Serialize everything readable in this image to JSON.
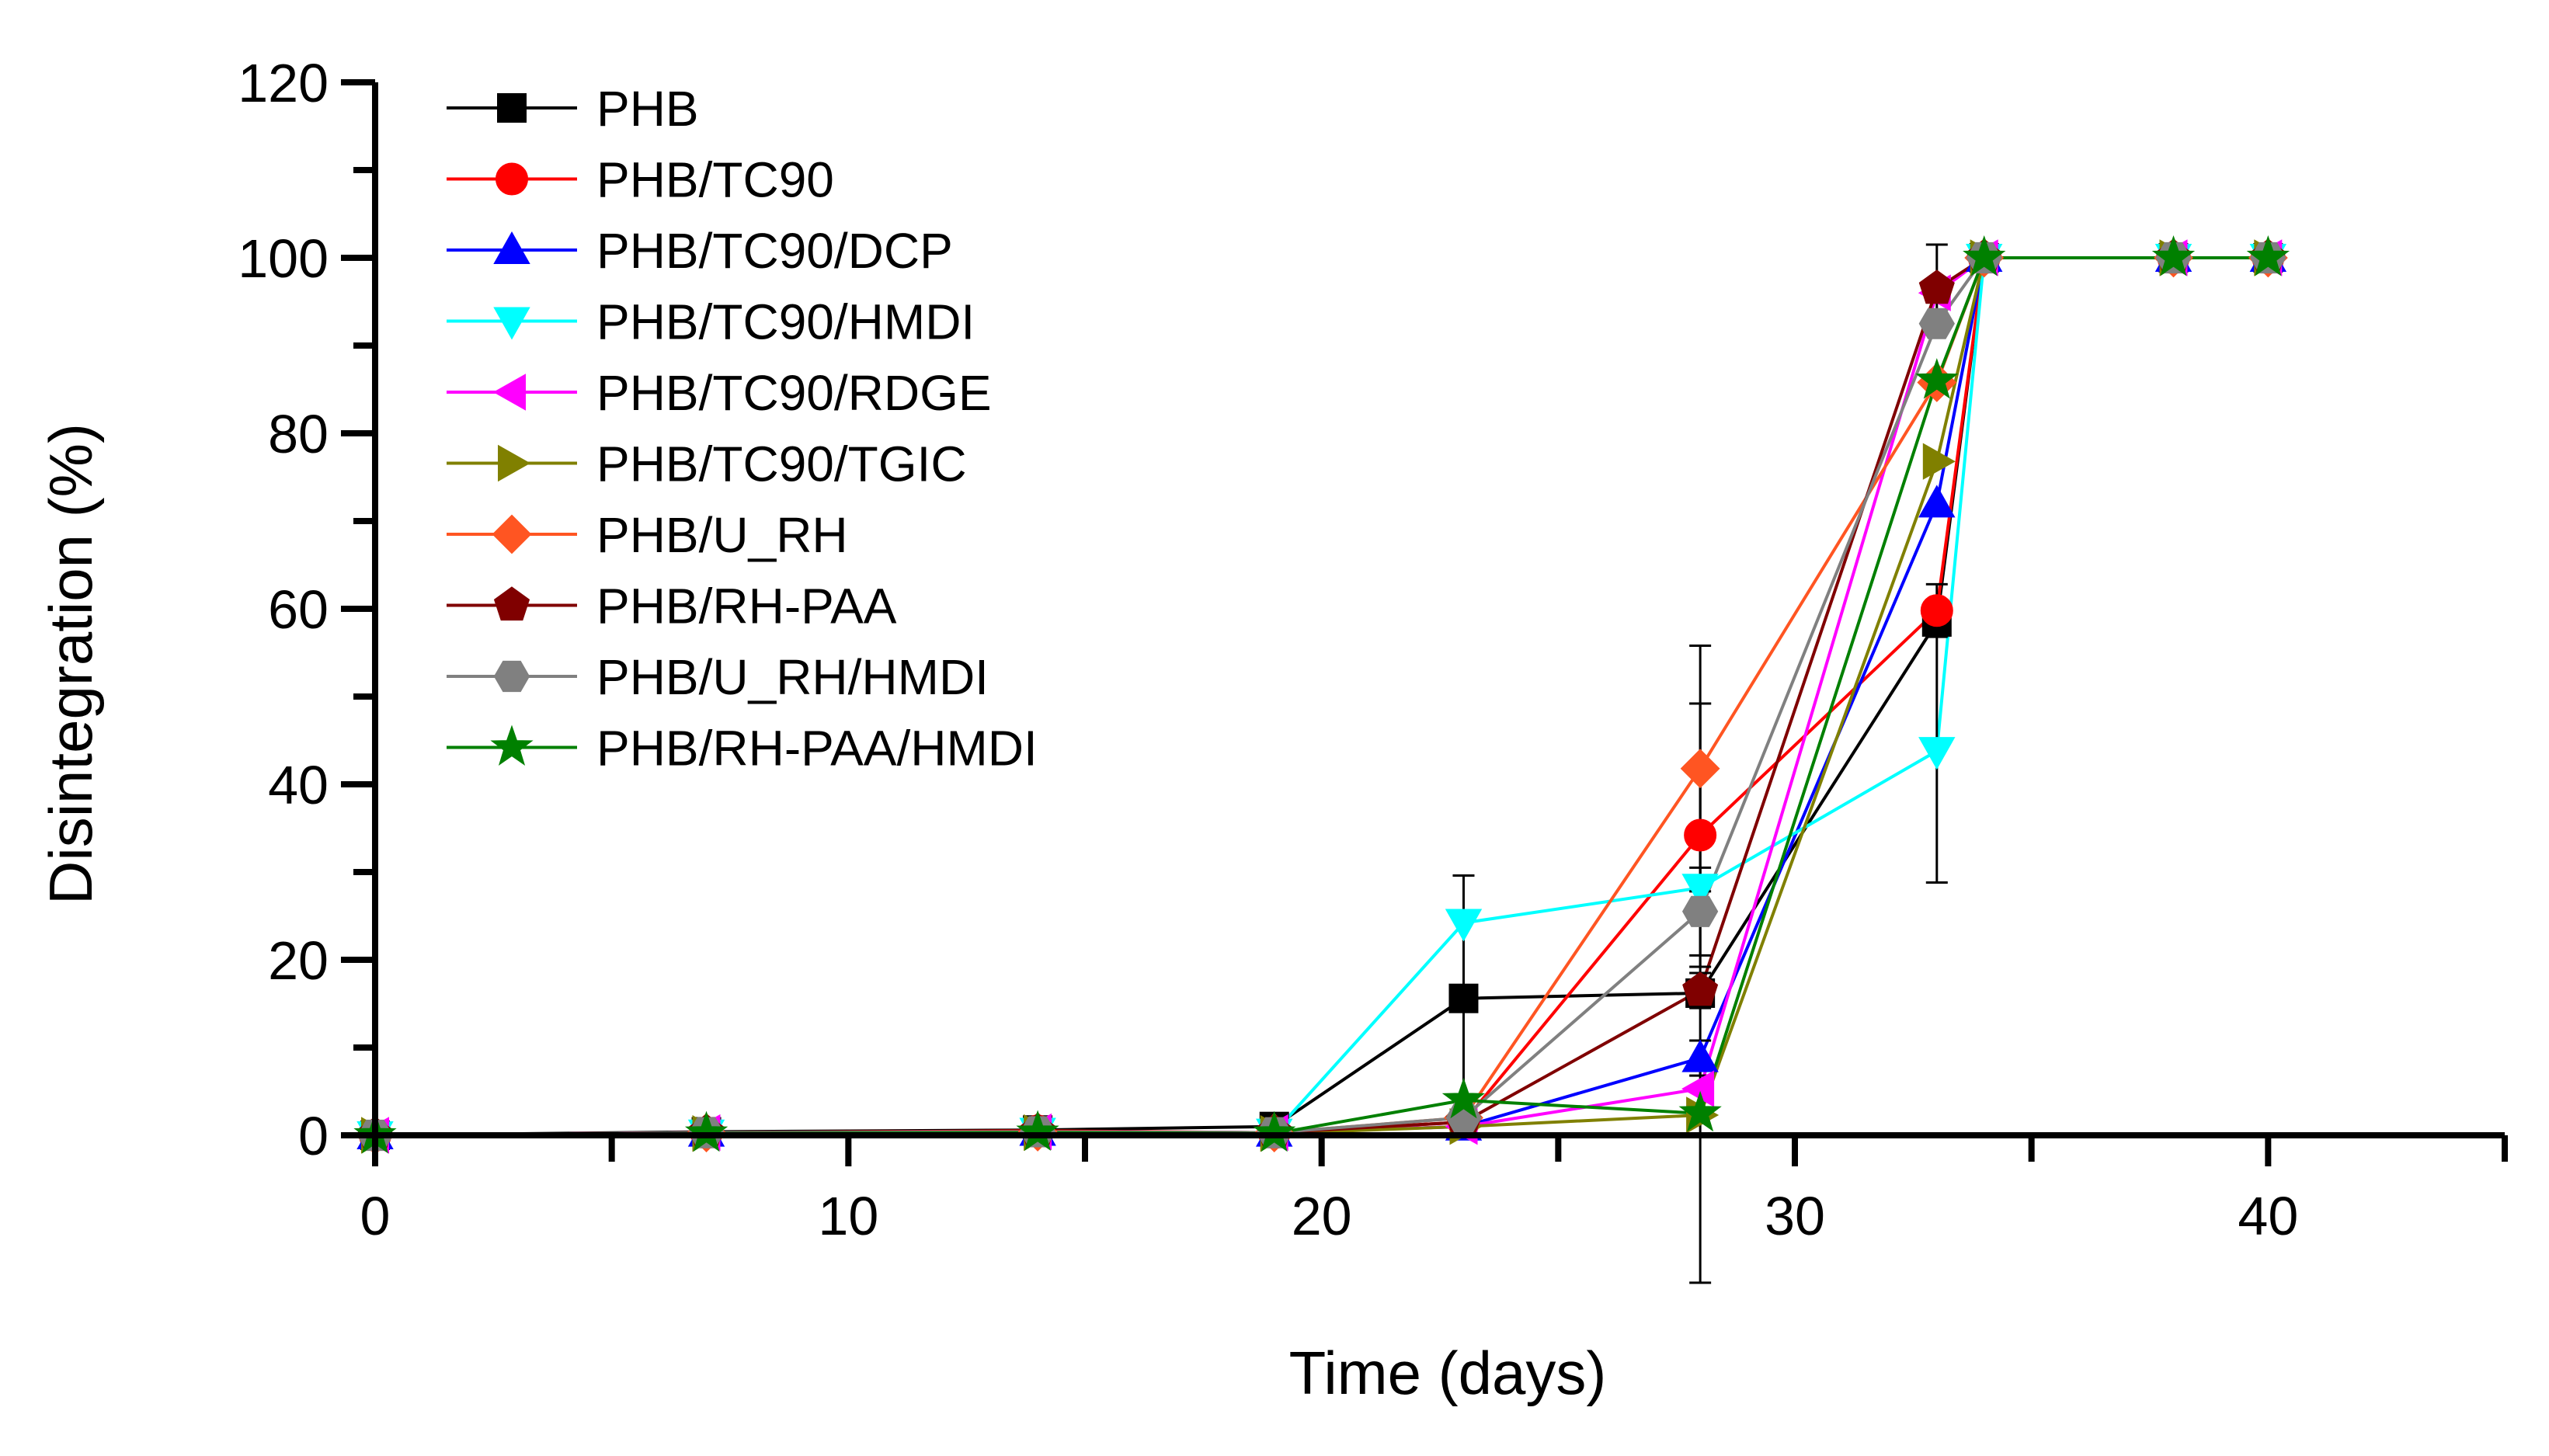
{
  "chart_data": {
    "type": "line",
    "title": "",
    "xlabel": "Time (days)",
    "ylabel": "Disintegration (%)",
    "xlim": [
      0,
      45
    ],
    "ylim": [
      0,
      120
    ],
    "xticks": [
      0,
      10,
      20,
      30,
      40
    ],
    "yticks": [
      0,
      20,
      40,
      60,
      80,
      100,
      120
    ],
    "grid": false,
    "legend_position": "top-left",
    "series": [
      {
        "name": "PHB",
        "color": "#000000",
        "marker": "square",
        "x": [
          0,
          7,
          14,
          19,
          23,
          28,
          33,
          34,
          38,
          40
        ],
        "y": [
          0,
          0.4,
          0.6,
          1,
          15.6,
          16.2,
          58.5,
          100,
          100,
          100
        ],
        "err": [
          0,
          0,
          0,
          0,
          14,
          33,
          0,
          0,
          0,
          0
        ]
      },
      {
        "name": "PHB/TC90",
        "color": "#ff0000",
        "marker": "circle",
        "x": [
          0,
          7,
          14,
          19,
          23,
          28,
          33,
          34,
          38,
          40
        ],
        "y": [
          0,
          0.3,
          0.5,
          0.3,
          1.5,
          34.2,
          59.8,
          100,
          100,
          100
        ],
        "err": [
          0,
          0,
          0,
          0,
          0,
          15,
          3,
          0,
          0,
          0
        ]
      },
      {
        "name": "PHB/TC90/DCP",
        "color": "#0000ff",
        "marker": "triangle-up",
        "x": [
          0,
          7,
          14,
          19,
          23,
          28,
          33,
          34,
          38,
          40
        ],
        "y": [
          0,
          0.3,
          0.4,
          0.3,
          1,
          8.8,
          72,
          100,
          100,
          100
        ],
        "err": [
          0,
          0,
          0,
          0,
          0,
          2,
          0,
          0,
          0,
          0
        ]
      },
      {
        "name": "PHB/TC90/HMDI",
        "color": "#00ffff",
        "marker": "triangle-down",
        "x": [
          0,
          7,
          14,
          19,
          23,
          28,
          33,
          34,
          38,
          40
        ],
        "y": [
          0,
          0.2,
          0.4,
          0.3,
          24.2,
          28.2,
          43.8,
          100,
          100,
          100
        ],
        "err": [
          0,
          0,
          0,
          0,
          0,
          0,
          15,
          0,
          0,
          0
        ]
      },
      {
        "name": "PHB/TC90/RDGE",
        "color": "#ff00ff",
        "marker": "triangle-left",
        "x": [
          0,
          7,
          14,
          19,
          23,
          28,
          33,
          34,
          38,
          40
        ],
        "y": [
          0,
          0.3,
          0.4,
          0.3,
          1,
          5.3,
          96,
          100,
          100,
          100
        ],
        "err": [
          0,
          0,
          0,
          0,
          0,
          0,
          0,
          0,
          0,
          0
        ]
      },
      {
        "name": "PHB/TC90/TGIC",
        "color": "#808000",
        "marker": "triangle-right",
        "x": [
          0,
          7,
          14,
          19,
          23,
          28,
          33,
          34,
          38,
          40
        ],
        "y": [
          0,
          0.2,
          0.3,
          0.2,
          1,
          2.3,
          76.8,
          100,
          100,
          100
        ],
        "err": [
          0,
          0,
          0,
          0,
          0,
          0,
          0,
          0,
          0,
          0
        ]
      },
      {
        "name": "PHB/U_RH",
        "color": "#ff5522",
        "marker": "diamond",
        "x": [
          0,
          7,
          14,
          19,
          23,
          28,
          33,
          34,
          38,
          40
        ],
        "y": [
          0,
          0.3,
          0.4,
          0.3,
          2,
          41.8,
          85.8,
          100,
          100,
          100
        ],
        "err": [
          0,
          0,
          0,
          0,
          0,
          14,
          0,
          0,
          0,
          0
        ]
      },
      {
        "name": "PHB/RH-PAA",
        "color": "#800000",
        "marker": "pentagon",
        "x": [
          0,
          7,
          14,
          19,
          23,
          28,
          33,
          34,
          38,
          40
        ],
        "y": [
          0,
          0.3,
          0.4,
          0.3,
          1.5,
          16.5,
          96.5,
          100,
          100,
          100
        ],
        "err": [
          0,
          0,
          0,
          0,
          0,
          2,
          5,
          0,
          0,
          0
        ]
      },
      {
        "name": "PHB/U_RH/HMDI",
        "color": "#808080",
        "marker": "hexagon",
        "x": [
          0,
          7,
          14,
          19,
          23,
          28,
          33,
          34,
          38,
          40
        ],
        "y": [
          0,
          0.3,
          0.4,
          0.3,
          2,
          25.5,
          92.5,
          100,
          100,
          100
        ],
        "err": [
          0,
          0,
          0,
          0,
          0,
          5,
          0,
          0,
          0,
          0
        ]
      },
      {
        "name": "PHB/RH-PAA/HMDI",
        "color": "#008000",
        "marker": "star",
        "x": [
          0,
          7,
          14,
          19,
          23,
          28,
          33,
          34,
          38,
          40
        ],
        "y": [
          0,
          0.2,
          0.3,
          0.2,
          4,
          2.5,
          86,
          100,
          100,
          100
        ],
        "err": [
          0,
          0,
          0,
          0,
          0,
          0,
          0,
          0,
          0,
          0
        ]
      }
    ]
  }
}
